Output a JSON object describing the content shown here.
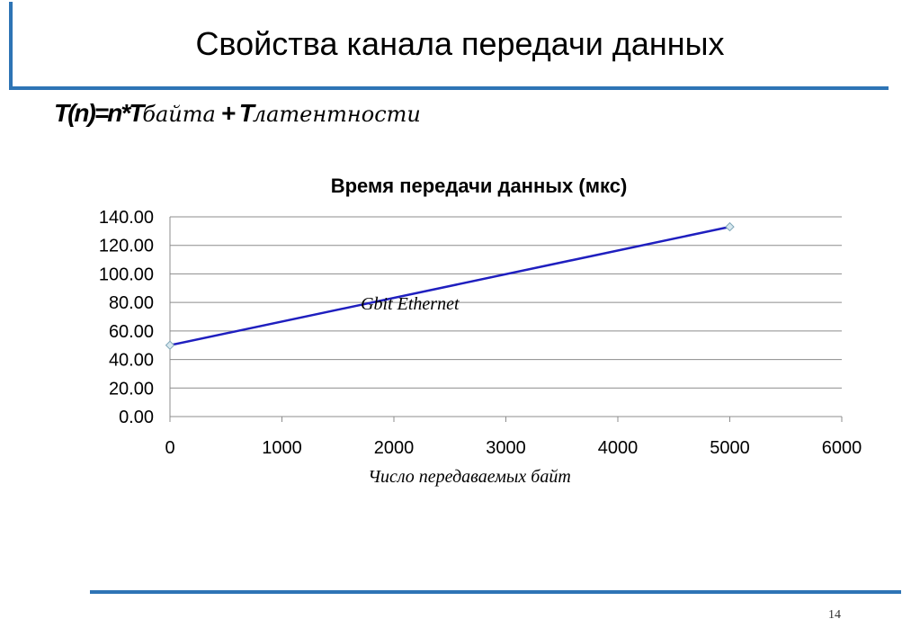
{
  "slide": {
    "title": "Свойства канала передачи данных",
    "formula": {
      "part1": "T(n)=n*T",
      "part2": "байта",
      "part3": " + T",
      "part4": "латентности"
    },
    "page_number": "14",
    "accent_color": "#2e74b5"
  },
  "chart_data": {
    "type": "line",
    "title": "Время передачи данных (мкс)",
    "xlabel": "Число передаваемых байт",
    "ylabel": "",
    "xlim": [
      0,
      6000
    ],
    "ylim": [
      0,
      140
    ],
    "x_ticks": [
      "0",
      "1000",
      "2000",
      "3000",
      "4000",
      "5000",
      "6000"
    ],
    "y_ticks": [
      "0.00",
      "20.00",
      "40.00",
      "60.00",
      "80.00",
      "100.00",
      "120.00",
      "140.00"
    ],
    "grid": true,
    "series": [
      {
        "name": "Gbit Ethernet",
        "color": "#1f1fbf",
        "x": [
          0,
          5000
        ],
        "values": [
          50,
          133
        ]
      }
    ],
    "annotations": [
      {
        "text": "Gbit Ethernet",
        "x": 1800,
        "y": 70
      }
    ]
  }
}
